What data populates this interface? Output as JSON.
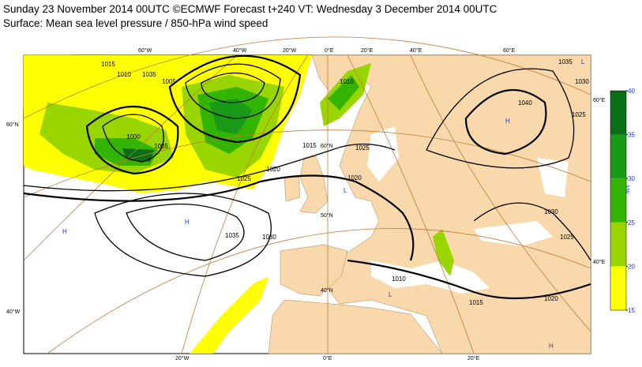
{
  "header": {
    "line1": "Sunday 23 November 2014 00UTC ©ECMWF Forecast t+240 VT: Wednesday 3 December 2014 00UTC",
    "line2": "Surface: Mean sea level pressure / 850-hPa wind speed"
  },
  "colorbar": {
    "unit": "m/s",
    "ticks": [
      15,
      20,
      25,
      30,
      35,
      40
    ],
    "colors": [
      "#ffff00",
      "#99d600",
      "#33b400",
      "#189a18",
      "#0a6e14"
    ]
  },
  "graticule_labels": [
    "60°W",
    "40°W",
    "20°W",
    "0°E",
    "20°E",
    "40°E",
    "60°E",
    "20°W",
    "0°E",
    "20°E",
    "60°N",
    "40°W",
    "60°E",
    "40°E",
    "60°N",
    "50°N",
    "40°N"
  ],
  "isobar_labels": [
    "1015",
    "1010",
    "1035",
    "1005",
    "1000",
    "1005",
    "1020",
    "1025",
    "1035",
    "1030",
    "1010",
    "1015",
    "1020",
    "1025",
    "1015",
    "1040",
    "1035",
    "1030",
    "1025",
    "1030",
    "1025",
    "1010",
    "1020"
  ],
  "pressure_centres": [
    "H",
    "H",
    "H",
    "H",
    "L",
    "L",
    "L"
  ]
}
